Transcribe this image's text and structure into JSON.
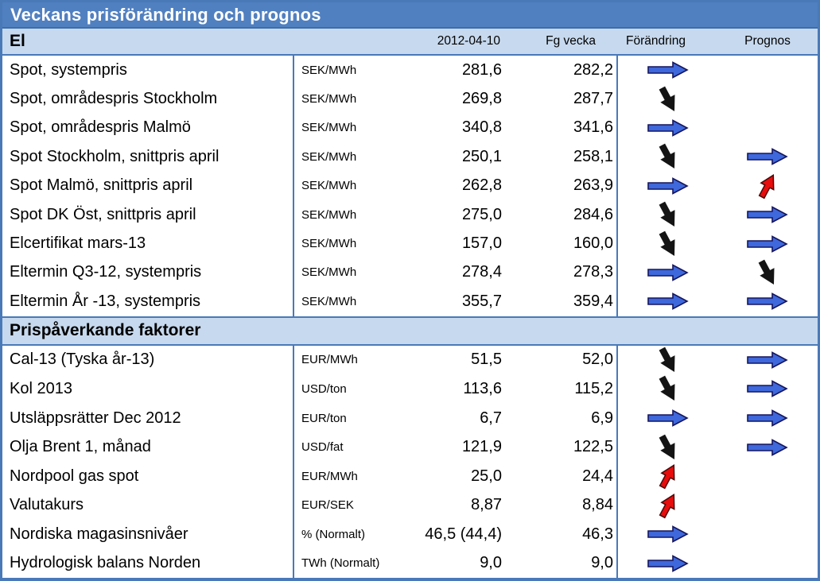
{
  "chart_data": {
    "type": "table",
    "title": "Veckans prisförändring och prognos",
    "columns": {
      "date": "2012-04-10",
      "prev_week": "Fg vecka",
      "change": "Förändring",
      "forecast": "Prognos"
    },
    "sections": [
      {
        "label": "El",
        "rows": [
          {
            "name": "Spot, systempris",
            "unit": "SEK/MWh",
            "current": "281,6",
            "prev_week": "282,2",
            "change": "right",
            "forecast": "none"
          },
          {
            "name": "Spot, områdespris Stockholm",
            "unit": "SEK/MWh",
            "current": "269,8",
            "prev_week": "287,7",
            "change": "down",
            "forecast": "none"
          },
          {
            "name": "Spot, områdespris Malmö",
            "unit": "SEK/MWh",
            "current": "340,8",
            "prev_week": "341,6",
            "change": "right",
            "forecast": "none"
          },
          {
            "name": "Spot Stockholm, snittpris april",
            "unit": "SEK/MWh",
            "current": "250,1",
            "prev_week": "258,1",
            "change": "down",
            "forecast": "right"
          },
          {
            "name": "Spot Malmö, snittpris april",
            "unit": "SEK/MWh",
            "current": "262,8",
            "prev_week": "263,9",
            "change": "right",
            "forecast": "up"
          },
          {
            "name": "Spot DK Öst, snittpris april",
            "unit": "SEK/MWh",
            "current": "275,0",
            "prev_week": "284,6",
            "change": "down",
            "forecast": "right"
          },
          {
            "name": "Elcertifikat mars-13",
            "unit": "SEK/MWh",
            "current": "157,0",
            "prev_week": "160,0",
            "change": "down",
            "forecast": "right"
          },
          {
            "name": "Eltermin Q3-12, systempris",
            "unit": "SEK/MWh",
            "current": "278,4",
            "prev_week": "278,3",
            "change": "right",
            "forecast": "down"
          },
          {
            "name": "Eltermin År -13, systempris",
            "unit": "SEK/MWh",
            "current": "355,7",
            "prev_week": "359,4",
            "change": "right",
            "forecast": "right"
          }
        ]
      },
      {
        "label": "Prispåverkande faktorer",
        "rows": [
          {
            "name": "Cal-13 (Tyska år-13)",
            "unit": "EUR/MWh",
            "current": "51,5",
            "prev_week": "52,0",
            "change": "down",
            "forecast": "right"
          },
          {
            "name": "Kol 2013",
            "unit": "USD/ton",
            "current": "113,6",
            "prev_week": "115,2",
            "change": "down",
            "forecast": "right"
          },
          {
            "name": "Utsläppsrätter Dec 2012",
            "unit": "EUR/ton",
            "current": "6,7",
            "prev_week": "6,9",
            "change": "right",
            "forecast": "right"
          },
          {
            "name": "Olja Brent 1, månad",
            "unit": "USD/fat",
            "current": "121,9",
            "prev_week": "122,5",
            "change": "down",
            "forecast": "right"
          },
          {
            "name": "Nordpool gas spot",
            "unit": "EUR/MWh",
            "current": "25,0",
            "prev_week": "24,4",
            "change": "up",
            "forecast": "none"
          },
          {
            "name": "Valutakurs",
            "unit": "EUR/SEK",
            "current": "8,87",
            "prev_week": "8,84",
            "change": "up",
            "forecast": "none"
          },
          {
            "name": "Nordiska magasinsnivåer",
            "unit": "% (Normalt)",
            "current": "46,5 (44,4)",
            "prev_week": "46,3",
            "change": "right",
            "forecast": "none"
          },
          {
            "name": "Hydrologisk balans Norden",
            "unit": "TWh (Normalt)",
            "current": "9,0",
            "prev_week": "9,0",
            "change": "right",
            "forecast": "none"
          }
        ]
      }
    ]
  },
  "colors": {
    "header_bar": "#5180c0",
    "section_band": "#c7d9ee",
    "table_border": "#4a79b8",
    "arrow_blue": "#3e68db",
    "arrow_blue_outline": "#15155e",
    "arrow_red": "#e90c0c",
    "arrow_red_outline": "#4a0808",
    "arrow_black": "#141414"
  }
}
